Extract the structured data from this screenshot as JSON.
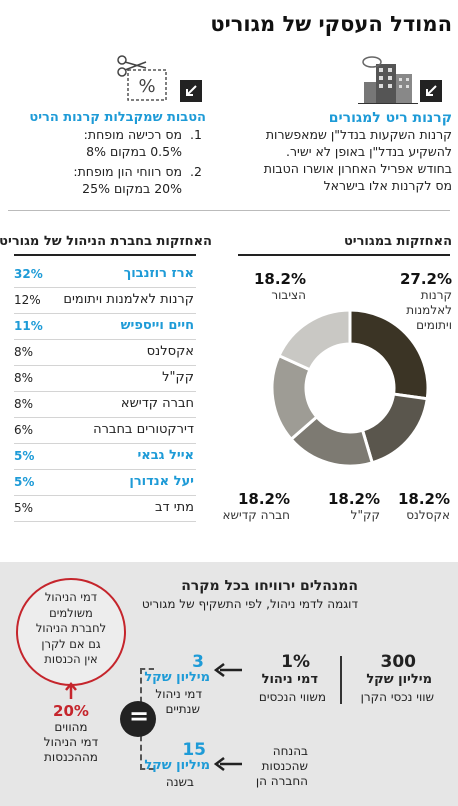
{
  "title": "המודל העסקי של מגוריט",
  "left_top": {
    "heading": "הטבות שמקבלות קרנות הריט",
    "items": [
      {
        "num": "1.",
        "line1": "מס רכישה מופחת:",
        "line2": "0.5% במקום 8%"
      },
      {
        "num": "2.",
        "line1": "מס רווחי הון מופחת:",
        "line2": "20% במקום 25%"
      }
    ],
    "icon": "scissors-coupon-icon"
  },
  "right_top": {
    "heading": "קרנות ריט למגורים",
    "lines": [
      "קרנות השקעות בנדל\"ן שמאפשרות",
      "להשקיע בנדל\"ן באופן לא ישיר.",
      "בחודש אפריל האחרון אושרו הטבות",
      "מס לקרנות אלו בישראל"
    ],
    "icon": "buildings-icon"
  },
  "holdings_table": {
    "heading": "האחזקות בחברת הניהול של מגוריט",
    "rows": [
      {
        "name": "ארז רוזנבוך",
        "pct": "32%",
        "highlight": true
      },
      {
        "name": "קרנות לאלמנות ויתומים",
        "pct": "12%",
        "highlight": false
      },
      {
        "name": "חיים וייספיש",
        "pct": "11%",
        "highlight": true
      },
      {
        "name": "אקסלנס",
        "pct": "8%",
        "highlight": false
      },
      {
        "name": "קק\"ל",
        "pct": "8%",
        "highlight": false
      },
      {
        "name": "חברה קדישא",
        "pct": "8%",
        "highlight": false
      },
      {
        "name": "דירקטורים בחברה",
        "pct": "6%",
        "highlight": false
      },
      {
        "name": "אייל גבאי",
        "pct": "5%",
        "highlight": true
      },
      {
        "name": "יעל אנדורן",
        "pct": "5%",
        "highlight": true
      },
      {
        "name": "מתי דב",
        "pct": "5%",
        "highlight": false
      }
    ]
  },
  "chart_data": {
    "type": "pie",
    "title": "האחזקות במגוריט",
    "slices": [
      {
        "label": "קרנות לאלמנות ויתומים",
        "value": 27.2,
        "display": "27.2%",
        "color": "#3b3425"
      },
      {
        "label": "אקסלנס",
        "value": 18.2,
        "display": "18.2%",
        "color": "#5a564d"
      },
      {
        "label": "קק\"ל",
        "value": 18.2,
        "display": "18.2%",
        "color": "#7d7a72"
      },
      {
        "label": "חברה קדישא",
        "value": 18.2,
        "display": "18.2%",
        "color": "#9e9c95"
      },
      {
        "label": "הציבור",
        "value": 18.2,
        "display": "18.2%",
        "color": "#c9c8c4"
      }
    ]
  },
  "bottom": {
    "heading": "המנהלים ירוויחו בכל מקרה",
    "subheading": "דוגמה לדמי ניהול, לפי התשקיף של מגוריט",
    "step1": {
      "value": "300",
      "unit": "מיליון שקל",
      "desc": "שווי נכסי הקרן"
    },
    "step2": {
      "value": "1%",
      "unit": "דמי ניהול",
      "desc": "משווי הנכסים"
    },
    "result_top": {
      "value": "3",
      "unit": "מיליון שקל",
      "desc1": "דמי ניהול",
      "desc2": "שנתיים"
    },
    "equals": "=",
    "result_bottom": {
      "value": "15",
      "unit": "מיליון שקל",
      "desc": "בשנה"
    },
    "assumption": {
      "line1": "בהנחה",
      "line2": "שהכנסות",
      "line3": "החברה הן"
    },
    "fee20": {
      "value": "20%",
      "line1": "מהווים",
      "line2": "דמי הניהול",
      "line3": "מההכנסות"
    },
    "circle_note": [
      "דמי הניהול",
      "משולמים",
      "לחברת הניהול",
      "גם אם לקרן",
      "אין הכנסות"
    ]
  }
}
